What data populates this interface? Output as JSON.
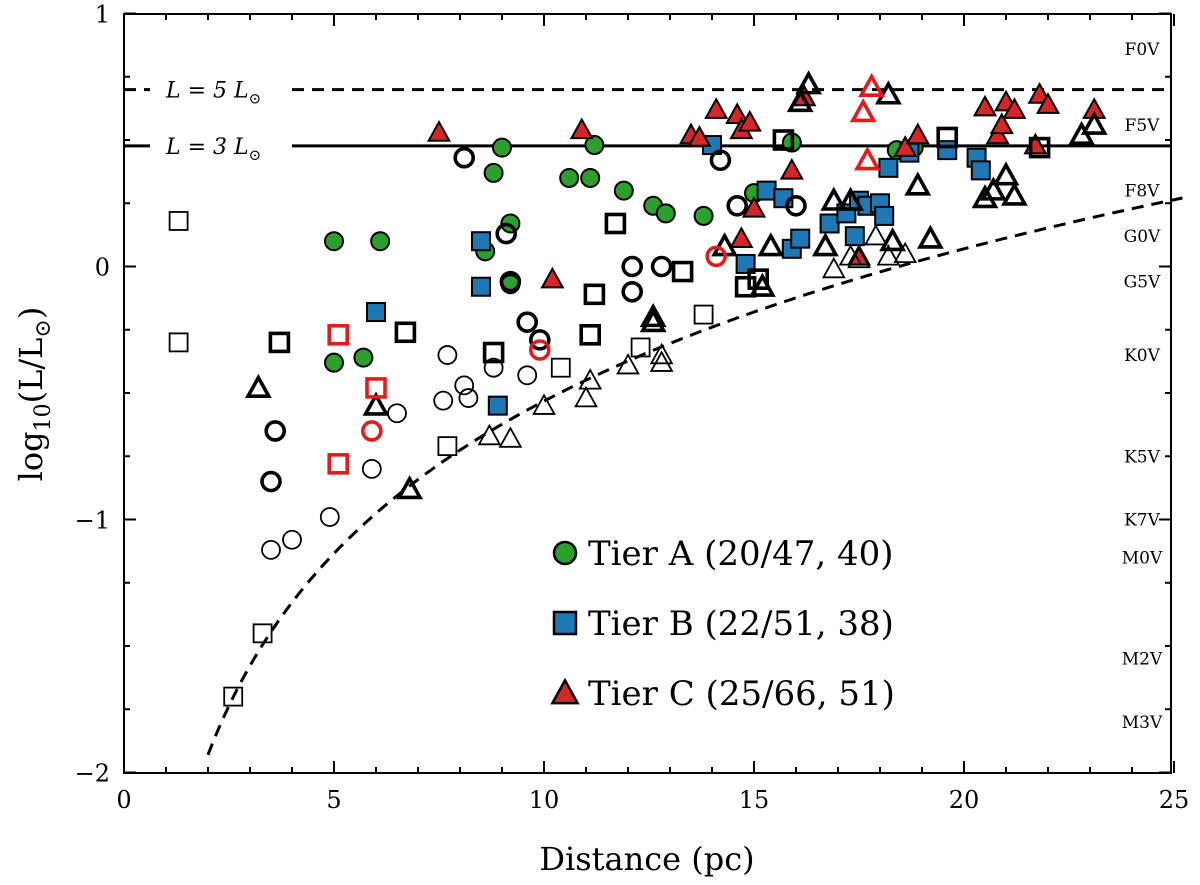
{
  "chart_data": {
    "type": "scatter",
    "title": "",
    "xlabel": "Distance (pc)",
    "ylabel": "log10(L/L⊙)",
    "ylabel_parts": {
      "base": "log",
      "sub": "10",
      "arg": "(L/L",
      "sun_sub": "⊙",
      "close": ")"
    },
    "xlim": [
      0,
      25.3
    ],
    "ylim": [
      -2,
      1
    ],
    "xticks": [
      0,
      5,
      10,
      15,
      20,
      25
    ],
    "xtick_labels": [
      "0",
      "5",
      "10",
      "15",
      "20",
      "25"
    ],
    "yticks": [
      -2,
      -1,
      0,
      1
    ],
    "ytick_labels": [
      "−2",
      "−1",
      "0",
      "1"
    ],
    "grid": false,
    "legend_position": "lower-center",
    "spectral_types": [
      {
        "label": "F0V",
        "logL": 0.86
      },
      {
        "label": "F5V",
        "logL": 0.56
      },
      {
        "label": "F8V",
        "logL": 0.3
      },
      {
        "label": "G0V",
        "logL": 0.12
      },
      {
        "label": "G5V",
        "logL": -0.06
      },
      {
        "label": "K0V",
        "logL": -0.35
      },
      {
        "label": "K5V",
        "logL": -0.75
      },
      {
        "label": "K7V",
        "logL": -1.0
      },
      {
        "label": "M0V",
        "logL": -1.15
      },
      {
        "label": "M2V",
        "logL": -1.55
      },
      {
        "label": "M3V",
        "logL": -1.8
      }
    ],
    "reference_lines": [
      {
        "label_prefix": "L = 5 L",
        "label_sub": "⊙",
        "logL": 0.699,
        "style": "dashed"
      },
      {
        "label_prefix": "L = 3 L",
        "label_sub": "⊙",
        "logL": 0.477,
        "style": "solid"
      }
    ],
    "limit_curve": {
      "style": "dashed",
      "description": "detection limit log L ∝ 2 log d",
      "d0": 2.0,
      "logL0": -1.93
    },
    "legend": [
      {
        "label": "Tier A (20/47, 40)",
        "marker": "circle",
        "color": "#2ca02c"
      },
      {
        "label": "Tier B (22/51, 38)",
        "marker": "square",
        "color": "#1f77b4"
      },
      {
        "label": "Tier C (25/66, 51)",
        "marker": "triangle",
        "color": "#d62728"
      }
    ],
    "series": [
      {
        "name": "Tier A selected",
        "marker": "circle",
        "fill": "#2ca02c",
        "edge": "#000000",
        "points": [
          [
            5.0,
            0.1
          ],
          [
            6.1,
            0.1
          ],
          [
            5.0,
            -0.38
          ],
          [
            5.7,
            -0.36
          ],
          [
            8.6,
            0.06
          ],
          [
            8.8,
            0.37
          ],
          [
            9.0,
            0.47
          ],
          [
            9.2,
            0.17
          ],
          [
            9.2,
            -0.07
          ],
          [
            10.6,
            0.35
          ],
          [
            11.1,
            0.35
          ],
          [
            11.2,
            0.48
          ],
          [
            11.9,
            0.3
          ],
          [
            12.6,
            0.24
          ],
          [
            12.9,
            0.21
          ],
          [
            13.8,
            0.2
          ],
          [
            15.0,
            0.29
          ],
          [
            15.9,
            0.49
          ],
          [
            18.4,
            0.46
          ],
          [
            18.8,
            0.47
          ]
        ]
      },
      {
        "name": "Tier B selected",
        "marker": "square",
        "fill": "#1f77b4",
        "edge": "#000000",
        "points": [
          [
            6.0,
            -0.18
          ],
          [
            8.5,
            0.1
          ],
          [
            8.5,
            -0.08
          ],
          [
            8.9,
            -0.55
          ],
          [
            14.0,
            0.48
          ],
          [
            14.8,
            0.01
          ],
          [
            15.3,
            0.3
          ],
          [
            15.7,
            0.27
          ],
          [
            15.9,
            0.07
          ],
          [
            16.1,
            0.11
          ],
          [
            16.8,
            0.17
          ],
          [
            17.2,
            0.21
          ],
          [
            17.4,
            0.12
          ],
          [
            17.5,
            0.26
          ],
          [
            17.7,
            0.24
          ],
          [
            18.0,
            0.25
          ],
          [
            18.1,
            0.2
          ],
          [
            18.2,
            0.39
          ],
          [
            18.7,
            0.45
          ],
          [
            19.6,
            0.46
          ],
          [
            20.3,
            0.43
          ],
          [
            20.4,
            0.38
          ]
        ]
      },
      {
        "name": "Tier C selected",
        "marker": "triangle",
        "fill": "#d62728",
        "edge": "#000000",
        "points": [
          [
            7.5,
            0.53
          ],
          [
            10.2,
            -0.05
          ],
          [
            10.9,
            0.54
          ],
          [
            13.5,
            0.52
          ],
          [
            13.7,
            0.51
          ],
          [
            14.1,
            0.62
          ],
          [
            14.6,
            0.6
          ],
          [
            14.7,
            0.54
          ],
          [
            14.7,
            0.11
          ],
          [
            14.9,
            0.57
          ],
          [
            15.0,
            0.23
          ],
          [
            15.9,
            0.38
          ],
          [
            16.2,
            0.67
          ],
          [
            17.5,
            0.04
          ],
          [
            18.6,
            0.47
          ],
          [
            18.9,
            0.52
          ],
          [
            20.5,
            0.63
          ],
          [
            20.8,
            0.52
          ],
          [
            21.0,
            0.65
          ],
          [
            21.2,
            0.62
          ],
          [
            21.8,
            0.68
          ],
          [
            22.0,
            0.64
          ],
          [
            23.1,
            0.62
          ],
          [
            21.7,
            0.48
          ],
          [
            20.9,
            0.56
          ]
        ]
      },
      {
        "name": "Other (bold outline)",
        "marker": "mixed",
        "fill": "none",
        "edge": "#000000",
        "weight": "bold",
        "points": [
          [
            3.6,
            -0.65,
            "circle"
          ],
          [
            3.5,
            -0.85,
            "circle"
          ],
          [
            8.1,
            0.43,
            "circle"
          ],
          [
            9.1,
            0.13,
            "circle"
          ],
          [
            9.2,
            -0.06,
            "circle"
          ],
          [
            9.6,
            -0.22,
            "circle"
          ],
          [
            9.9,
            -0.29,
            "circle"
          ],
          [
            12.1,
            0.0,
            "circle"
          ],
          [
            12.1,
            -0.1,
            "circle"
          ],
          [
            12.8,
            0.0,
            "circle"
          ],
          [
            14.2,
            0.42,
            "circle"
          ],
          [
            14.6,
            0.24,
            "circle"
          ],
          [
            16.0,
            0.24,
            "circle"
          ],
          [
            3.7,
            -0.3,
            "square"
          ],
          [
            6.7,
            -0.26,
            "square"
          ],
          [
            8.8,
            -0.34,
            "square"
          ],
          [
            11.2,
            -0.11,
            "square"
          ],
          [
            11.7,
            0.17,
            "square"
          ],
          [
            11.1,
            -0.27,
            "square"
          ],
          [
            13.3,
            -0.02,
            "square"
          ],
          [
            14.8,
            -0.08,
            "square"
          ],
          [
            15.1,
            -0.05,
            "square"
          ],
          [
            15.7,
            0.5,
            "square"
          ],
          [
            19.6,
            0.51,
            "square"
          ],
          [
            21.8,
            0.47,
            "square"
          ],
          [
            3.2,
            -0.48,
            "triangle"
          ],
          [
            6.0,
            -0.55,
            "triangle"
          ],
          [
            6.8,
            -0.88,
            "triangle"
          ],
          [
            12.6,
            -0.2,
            "triangle"
          ],
          [
            12.6,
            -0.22,
            "triangle"
          ],
          [
            14.3,
            0.08,
            "triangle"
          ],
          [
            15.2,
            -0.08,
            "triangle"
          ],
          [
            15.4,
            0.08,
            "triangle"
          ],
          [
            16.1,
            0.65,
            "triangle"
          ],
          [
            16.3,
            0.72,
            "triangle"
          ],
          [
            16.7,
            0.08,
            "triangle"
          ],
          [
            16.9,
            0.26,
            "triangle"
          ],
          [
            17.3,
            0.26,
            "triangle"
          ],
          [
            18.2,
            0.68,
            "triangle"
          ],
          [
            18.3,
            0.1,
            "triangle"
          ],
          [
            18.9,
            0.32,
            "triangle"
          ],
          [
            19.2,
            0.11,
            "triangle"
          ],
          [
            20.5,
            0.27,
            "triangle"
          ],
          [
            20.7,
            0.3,
            "triangle"
          ],
          [
            21.0,
            0.36,
            "triangle"
          ],
          [
            21.2,
            0.28,
            "triangle"
          ],
          [
            22.8,
            0.52,
            "triangle"
          ],
          [
            23.1,
            0.56,
            "triangle"
          ]
        ]
      },
      {
        "name": "Other (thin outline)",
        "marker": "mixed",
        "fill": "none",
        "edge": "#000000",
        "weight": "thin",
        "points": [
          [
            3.5,
            -1.12,
            "circle"
          ],
          [
            4.0,
            -1.08,
            "circle"
          ],
          [
            4.9,
            -0.99,
            "circle"
          ],
          [
            5.9,
            -0.8,
            "circle"
          ],
          [
            6.5,
            -0.58,
            "circle"
          ],
          [
            7.6,
            -0.53,
            "circle"
          ],
          [
            8.1,
            -0.47,
            "circle"
          ],
          [
            8.2,
            -0.52,
            "circle"
          ],
          [
            8.8,
            -0.4,
            "circle"
          ],
          [
            9.6,
            -0.43,
            "circle"
          ],
          [
            7.7,
            -0.35,
            "circle"
          ],
          [
            1.3,
            0.18,
            "square"
          ],
          [
            1.3,
            -0.3,
            "square"
          ],
          [
            3.3,
            -1.45,
            "square"
          ],
          [
            2.6,
            -1.7,
            "square"
          ],
          [
            7.7,
            -0.71,
            "square"
          ],
          [
            10.4,
            -0.4,
            "square"
          ],
          [
            12.3,
            -0.32,
            "square"
          ],
          [
            13.8,
            -0.19,
            "square"
          ],
          [
            8.7,
            -0.67,
            "triangle"
          ],
          [
            9.2,
            -0.68,
            "triangle"
          ],
          [
            10.0,
            -0.55,
            "triangle"
          ],
          [
            11.0,
            -0.52,
            "triangle"
          ],
          [
            11.1,
            -0.45,
            "triangle"
          ],
          [
            12.0,
            -0.39,
            "triangle"
          ],
          [
            12.8,
            -0.38,
            "triangle"
          ],
          [
            12.8,
            -0.35,
            "triangle"
          ],
          [
            16.9,
            -0.01,
            "triangle"
          ],
          [
            17.3,
            0.04,
            "triangle"
          ],
          [
            17.5,
            0.03,
            "triangle"
          ],
          [
            18.2,
            0.04,
            "triangle"
          ],
          [
            18.6,
            0.05,
            "triangle"
          ],
          [
            17.9,
            0.12,
            "triangle"
          ]
        ]
      },
      {
        "name": "Other (red outline)",
        "marker": "mixed",
        "fill": "none",
        "edge": "#e41a1c",
        "weight": "bold",
        "points": [
          [
            5.1,
            -0.27,
            "square"
          ],
          [
            6.0,
            -0.48,
            "square"
          ],
          [
            5.1,
            -0.78,
            "square"
          ],
          [
            5.9,
            -0.65,
            "circle"
          ],
          [
            9.9,
            -0.33,
            "circle"
          ],
          [
            14.1,
            0.04,
            "circle"
          ],
          [
            17.6,
            0.61,
            "triangle"
          ],
          [
            17.7,
            0.42,
            "triangle"
          ],
          [
            17.8,
            0.71,
            "triangle"
          ]
        ]
      }
    ]
  }
}
